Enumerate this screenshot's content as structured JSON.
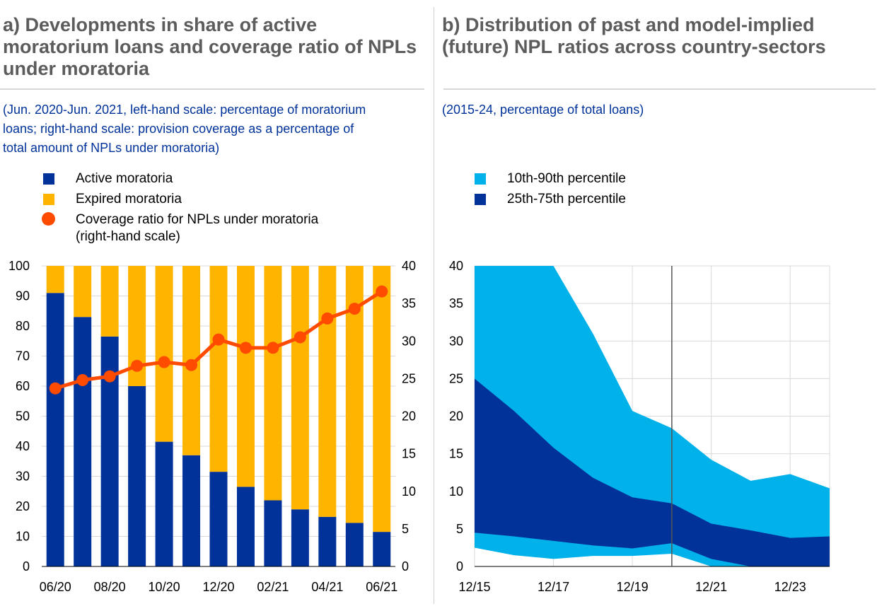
{
  "panel_a": {
    "title_lines": [
      "a) Developments in share of active",
      "moratorium loans and coverage ratio of NPLs",
      "under moratoria"
    ],
    "subtitle_lines": [
      "(Jun. 2020-Jun. 2021, left-hand scale: percentage of moratorium",
      "loans; right-hand scale: provision coverage as a percentage of",
      "total amount of NPLs under moratoria)"
    ],
    "legend": [
      {
        "label": "Active moratoria",
        "color": "#003299"
      },
      {
        "label": "Expired moratoria",
        "color": "#ffb400"
      },
      {
        "label": "Coverage ratio for NPLs under moratoria",
        "label2": "(right-hand scale)",
        "color": "#ff4b00"
      }
    ]
  },
  "panel_b": {
    "title_lines": [
      "b) Distribution of past and model-implied",
      "(future) NPL ratios across country-sectors"
    ],
    "subtitle_lines": [
      "(2015-24, percentage of total loans)"
    ],
    "legend": [
      {
        "label": "10th-90th percentile",
        "color": "#00b1ea"
      },
      {
        "label": "25th-75th percentile",
        "color": "#003299"
      }
    ]
  },
  "chart_data": [
    {
      "type": "bar",
      "stacked": true,
      "categories": [
        "06/20",
        "07/20",
        "08/20",
        "09/20",
        "10/20",
        "11/20",
        "12/20",
        "01/21",
        "02/21",
        "03/21",
        "04/21",
        "05/21",
        "06/21"
      ],
      "x_tick_labels": [
        "06/20",
        "08/20",
        "10/20",
        "12/20",
        "02/21",
        "04/21",
        "06/21"
      ],
      "series": [
        {
          "name": "Active moratoria",
          "color": "#003299",
          "values": [
            91,
            83,
            76.5,
            60,
            41.5,
            37,
            31.5,
            26.5,
            22,
            19,
            16.5,
            14.5,
            11.5
          ]
        },
        {
          "name": "Expired moratoria",
          "color": "#ffb400",
          "values": [
            9,
            17,
            23.5,
            40,
            58.5,
            63,
            68.5,
            73.5,
            78,
            81,
            83.5,
            85.5,
            88.5
          ]
        },
        {
          "name": "Coverage ratio for NPLs under moratoria",
          "axis": "right",
          "type": "line",
          "color": "#ff4b00",
          "values": [
            23.7,
            24.8,
            25.3,
            26.7,
            27.2,
            26.8,
            30.2,
            29.1,
            29.1,
            30.5,
            33.0,
            34.3,
            36.6
          ]
        }
      ],
      "ylim": [
        0,
        100
      ],
      "y_ticks": [
        0,
        10,
        20,
        30,
        40,
        50,
        60,
        70,
        80,
        90,
        100
      ],
      "y2lim": [
        0,
        40
      ],
      "y2_ticks": [
        0,
        5,
        10,
        15,
        20,
        25,
        30,
        35,
        40
      ]
    },
    {
      "type": "area",
      "x": [
        2015.917,
        2016.917,
        2017.917,
        2018.917,
        2019.917,
        2020.917,
        2021.917,
        2022.917,
        2023.917,
        2024.917
      ],
      "x_tick_labels": [
        "12/15",
        "12/17",
        "12/19",
        "12/21",
        "12/23"
      ],
      "x_ticks": [
        2015.917,
        2017.917,
        2019.917,
        2021.917,
        2023.917
      ],
      "x_range": [
        2015.917,
        2024.917
      ],
      "series": [
        {
          "name": "10th-90th percentile",
          "color": "#00b1ea",
          "lower": [
            2.5,
            1.5,
            1.0,
            1.4,
            1.4,
            1.7,
            0.0,
            0.0,
            0.0,
            0.0
          ],
          "upper": [
            40,
            40,
            40,
            31,
            20.7,
            18.4,
            14.2,
            11.4,
            12.3,
            10.4
          ]
        },
        {
          "name": "25th-75th percentile",
          "color": "#003299",
          "lower": [
            4.5,
            4.0,
            3.4,
            2.8,
            2.4,
            3.1,
            1.0,
            0.0,
            0.0,
            0.0
          ],
          "upper": [
            25,
            20.7,
            15.8,
            11.8,
            9.2,
            8.4,
            5.7,
            4.8,
            3.8,
            4.0
          ]
        }
      ],
      "vline_at": 2020.917,
      "ylim": [
        0,
        40
      ],
      "y_ticks": [
        0,
        5,
        10,
        15,
        20,
        25,
        30,
        35,
        40
      ]
    }
  ]
}
